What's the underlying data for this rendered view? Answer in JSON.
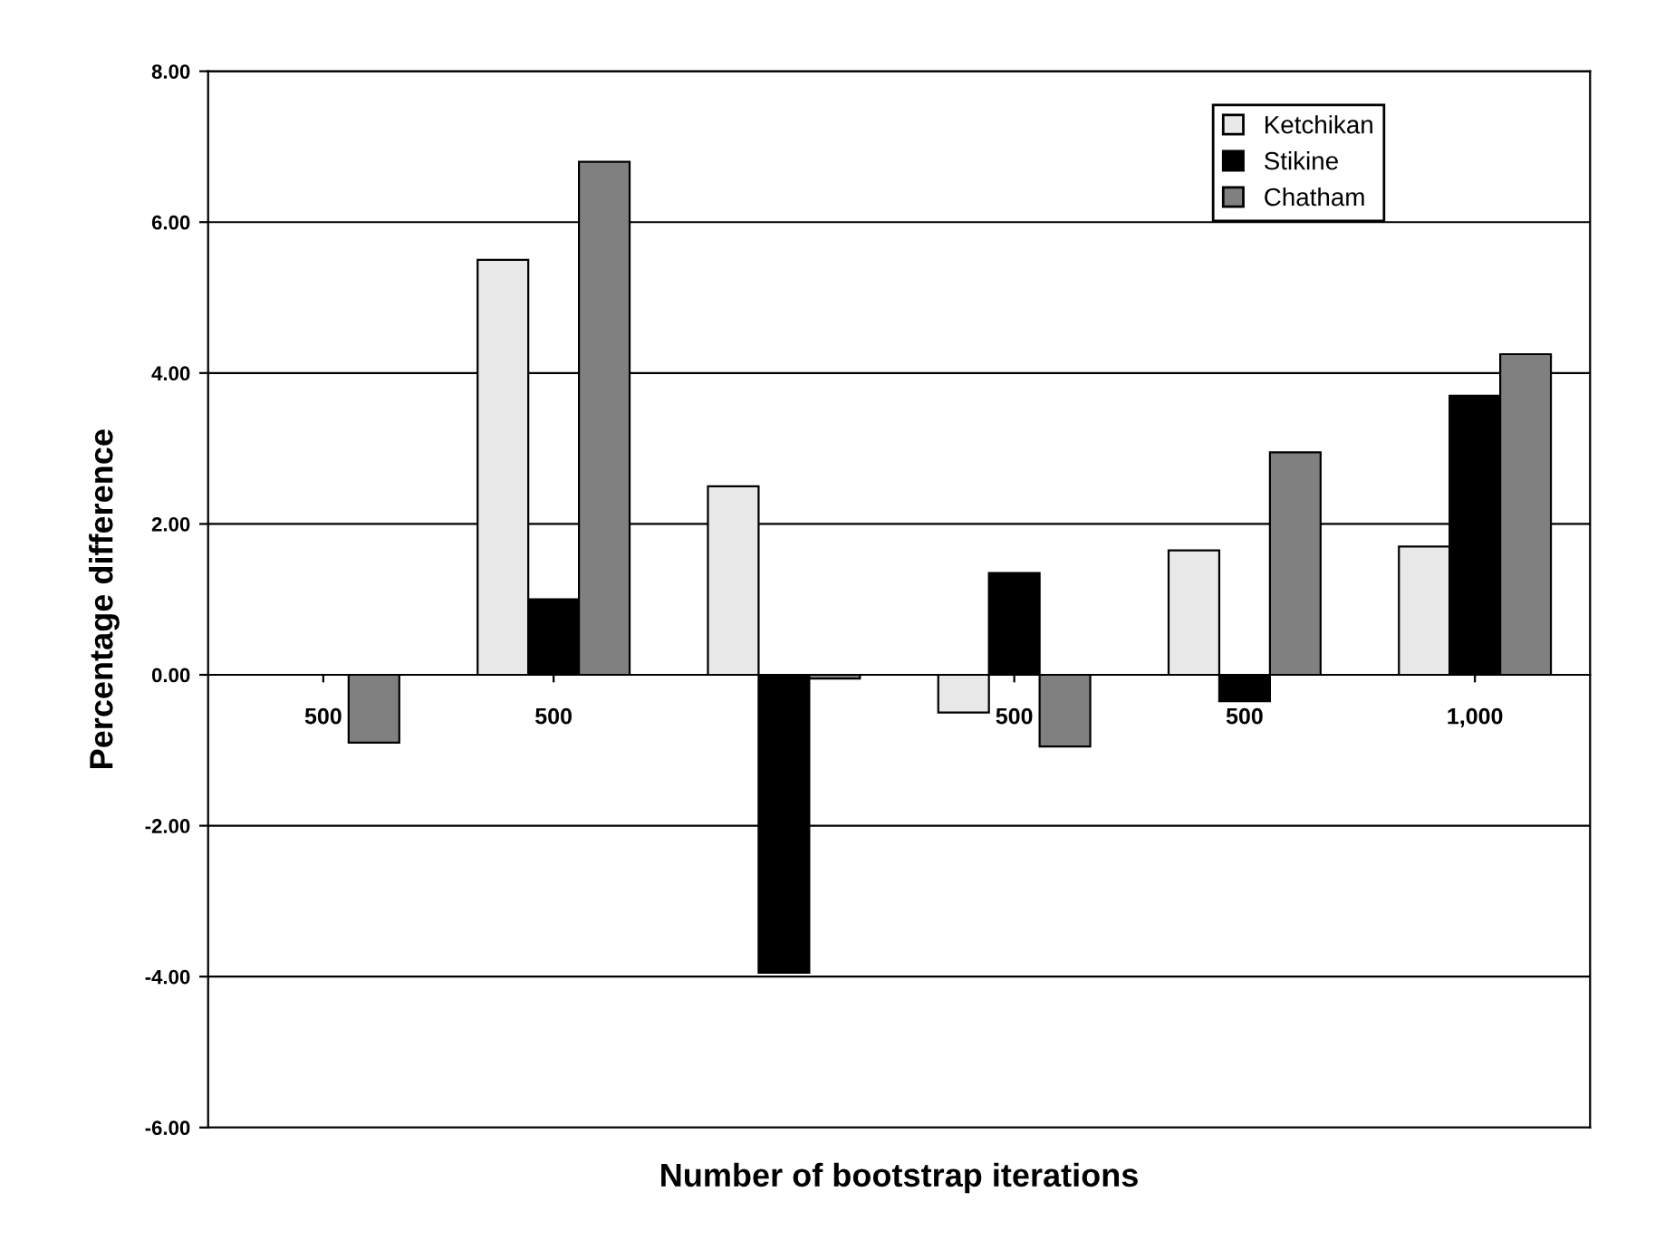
{
  "chart_data": {
    "type": "bar",
    "xlabel": "Number of bootstrap iterations",
    "ylabel": "Percentage difference",
    "categories": [
      "500",
      "500",
      null,
      "500",
      "500",
      "1,000"
    ],
    "series": [
      {
        "name": "Ketchikan",
        "color": "#e8e8e8",
        "values": [
          null,
          5.5,
          2.5,
          -0.5,
          1.65,
          1.7
        ]
      },
      {
        "name": "Stikine",
        "color": "#000000",
        "values": [
          null,
          1.0,
          -3.95,
          1.35,
          -0.35,
          3.7
        ]
      },
      {
        "name": "Chatham",
        "color": "#808080",
        "values": [
          -0.9,
          6.8,
          -0.05,
          -0.95,
          2.95,
          4.25
        ]
      }
    ],
    "ylim": [
      -6,
      8
    ],
    "yticks": [
      {
        "value": -6,
        "label": "-6.00"
      },
      {
        "value": -4,
        "label": "-4.00"
      },
      {
        "value": -2,
        "label": "-2.00"
      },
      {
        "value": 0,
        "label": "0.00"
      },
      {
        "value": 2,
        "label": "2.00"
      },
      {
        "value": 4,
        "label": "4.00"
      },
      {
        "value": 6,
        "label": "6.00"
      },
      {
        "value": 8,
        "label": "8.00"
      }
    ],
    "grid": "y",
    "legend": "top right"
  }
}
